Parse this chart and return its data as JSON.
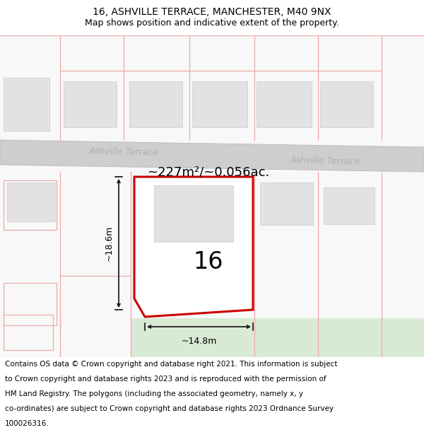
{
  "title_line1": "16, ASHVILLE TERRACE, MANCHESTER, M40 9NX",
  "title_line2": "Map shows position and indicative extent of the property.",
  "footer_lines": [
    "Contains OS data © Crown copyright and database right 2021. This information is subject",
    "to Crown copyright and database rights 2023 and is reproduced with the permission of",
    "HM Land Registry. The polygons (including the associated geometry, namely x, y",
    "co-ordinates) are subject to Crown copyright and database rights 2023 Ordnance Survey",
    "100026316."
  ],
  "area_label": "~227m²/~0.056ac.",
  "street_label": "Ashville Terrace",
  "plot_number": "16",
  "width_label": "~14.8m",
  "height_label": "~18.6m",
  "bg_color": "#ffffff",
  "map_bg": "#f8f8f8",
  "road_fill": "#cecece",
  "road_edge": "#b8b8b8",
  "plot_red": "#cc0000",
  "building_fill": "#e2e2e2",
  "building_edge": "#cccccc",
  "pink_line": "#f0aaaa",
  "green_fill": "#d8ead4",
  "dim_color": "#111111",
  "street_text_color": "#b0b0b0",
  "title_fs": 10,
  "subtitle_fs": 9,
  "footer_fs": 7.5,
  "area_fs": 13,
  "plot_num_fs": 24,
  "street_fs": 9,
  "dim_fs": 9
}
